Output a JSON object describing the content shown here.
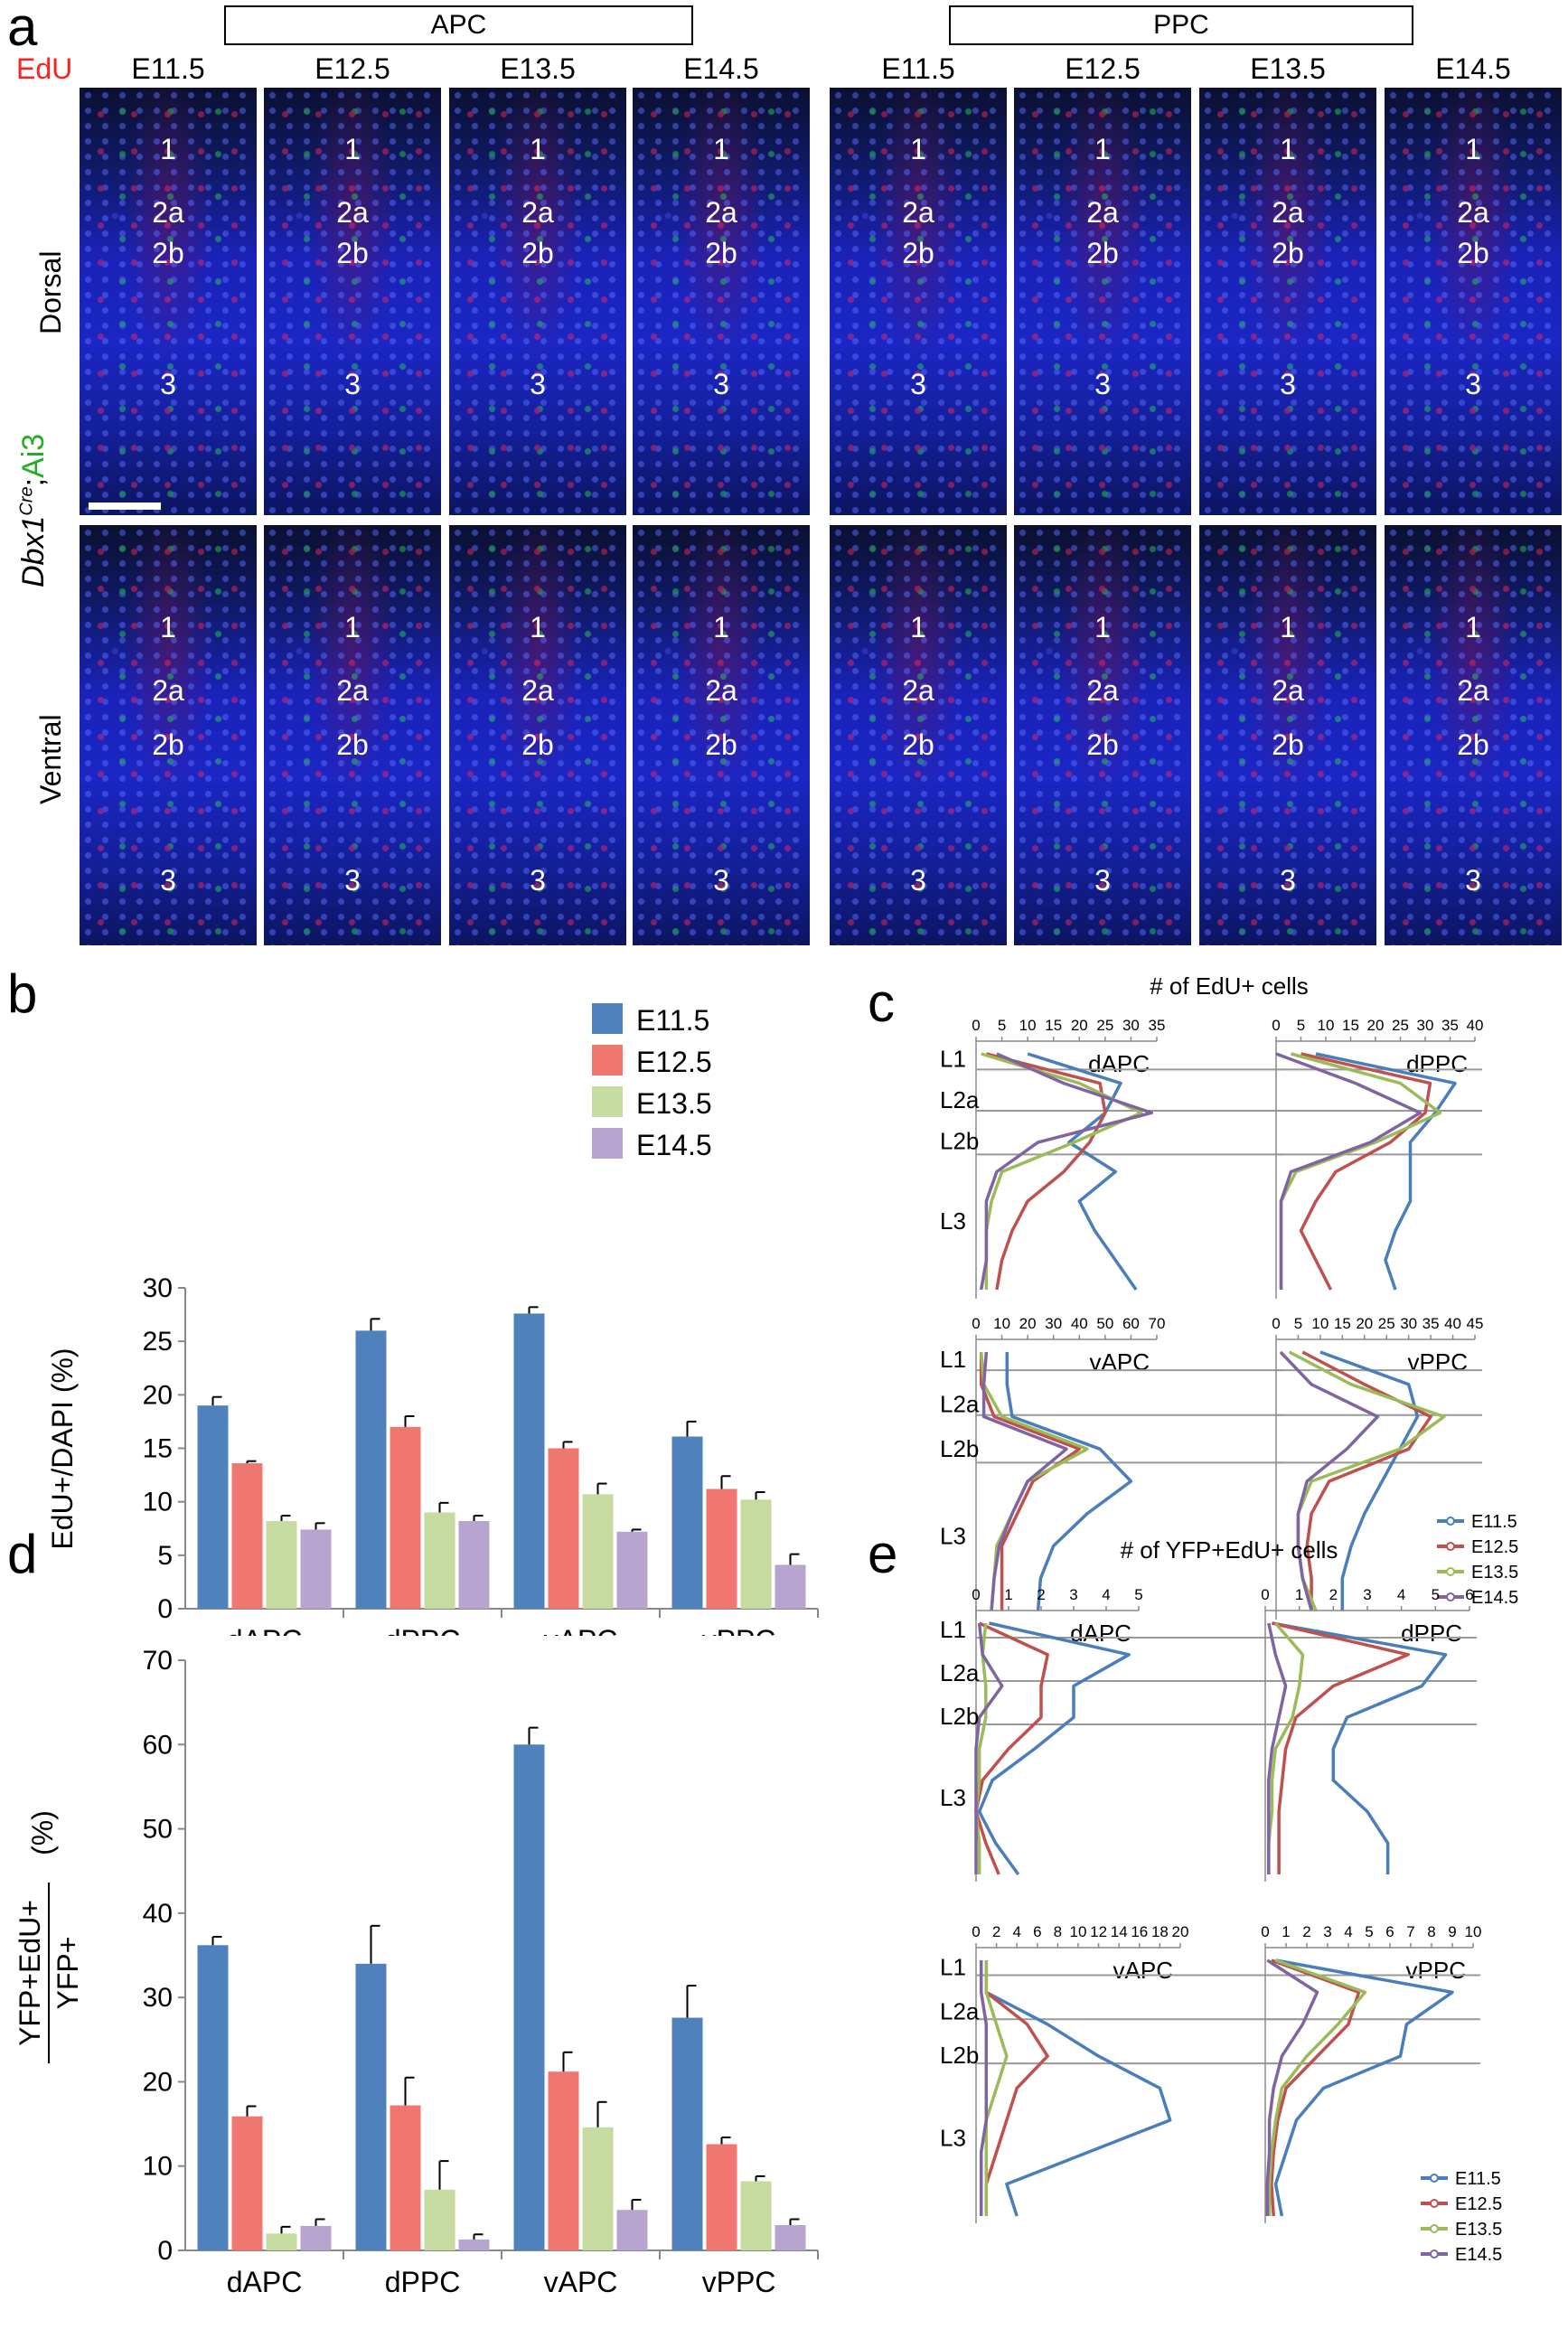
{
  "panel_letters": {
    "a": "a",
    "b": "b",
    "c": "c",
    "d": "d",
    "e": "e"
  },
  "panel_a": {
    "header_apc": "APC",
    "header_ppc": "PPC",
    "edu_label": "EdU",
    "edu_color": "#ff2020",
    "ages": [
      "E11.5",
      "E12.5",
      "E13.5",
      "E14.5"
    ],
    "row_labels": {
      "dorsal": "Dorsal",
      "ventral": "Ventral"
    },
    "genotype_label": {
      "gene": "Dbx1",
      "sup": "Cre",
      "sep": ";",
      "reporter": "Ai3",
      "reporter_color": "#22b022"
    },
    "layer_labels": {
      "l1": "1",
      "l2a": "2a",
      "l2b": "2b",
      "l3": "3"
    }
  },
  "colors": {
    "E11.5": "#4f81bd",
    "E12.5": "#f0776f",
    "E13.5": "#c6dba0",
    "E14.5": "#b7a5cf",
    "line_E11.5": "#4a7ebb",
    "line_E12.5": "#c0504d",
    "line_E13.5": "#9bbb59",
    "line_E14.5": "#8064a2"
  },
  "chart_data": [
    {
      "id": "b",
      "type": "bar",
      "categories": [
        "dAPC",
        "dPPC",
        "vAPC",
        "vPPC"
      ],
      "ylabel": "EdU+/DAPI (%)",
      "ylim": [
        0,
        30
      ],
      "yticks": [
        0,
        5,
        10,
        15,
        20,
        25,
        30
      ],
      "legend_position": "top-right",
      "series": [
        {
          "name": "E11.5",
          "values": [
            19.0,
            26.0,
            27.6,
            16.1
          ],
          "errors": [
            0.8,
            1.1,
            0.6,
            1.4
          ]
        },
        {
          "name": "E12.5",
          "values": [
            13.6,
            17.0,
            15.0,
            11.2
          ],
          "errors": [
            0.2,
            1.0,
            0.6,
            1.2
          ]
        },
        {
          "name": "E13.5",
          "values": [
            8.2,
            9.0,
            10.7,
            10.2
          ],
          "errors": [
            0.5,
            0.9,
            1.0,
            0.7
          ]
        },
        {
          "name": "E14.5",
          "values": [
            7.4,
            8.2,
            7.2,
            4.1
          ],
          "errors": [
            0.6,
            0.5,
            0.2,
            1.0
          ]
        }
      ]
    },
    {
      "id": "d",
      "type": "bar",
      "categories": [
        "dAPC",
        "dPPC",
        "vAPC",
        "vPPC"
      ],
      "ylabel_num": "YFP+EdU+",
      "ylabel_den": "YFP+",
      "ylabel_unit": "(%)",
      "ylim": [
        0,
        70
      ],
      "yticks": [
        0,
        10,
        20,
        30,
        40,
        50,
        60,
        70
      ],
      "series": [
        {
          "name": "E11.5",
          "values": [
            36.2,
            34.0,
            60.0,
            27.6
          ],
          "errors": [
            1.0,
            4.5,
            2.0,
            3.8
          ]
        },
        {
          "name": "E12.5",
          "values": [
            15.9,
            17.2,
            21.2,
            12.6
          ],
          "errors": [
            1.2,
            3.3,
            2.3,
            0.8
          ]
        },
        {
          "name": "E13.5",
          "values": [
            2.0,
            7.2,
            14.6,
            8.2
          ],
          "errors": [
            0.8,
            3.4,
            3.0,
            0.6
          ]
        },
        {
          "name": "E14.5",
          "values": [
            2.9,
            1.3,
            4.8,
            3.0
          ],
          "errors": [
            0.8,
            0.6,
            1.2,
            0.7
          ]
        }
      ]
    },
    {
      "id": "c",
      "type": "line",
      "title": "# of EdU+ cells",
      "layer_labels": [
        "L1",
        "L2a",
        "L2b",
        "L3"
      ],
      "legend_position": "bottom-right",
      "subplots": [
        {
          "name": "dAPC",
          "xticks": [
            0,
            5,
            10,
            15,
            20,
            25,
            30,
            35
          ],
          "xlim": [
            0,
            35
          ],
          "series": [
            {
              "name": "E11.5",
              "values": [
                10,
                28,
                25,
                18,
                27,
                20,
                23,
                27,
                31
              ]
            },
            {
              "name": "E12.5",
              "values": [
                2,
                24,
                25,
                22,
                17,
                10,
                7,
                5,
                4
              ]
            },
            {
              "name": "E13.5",
              "values": [
                1,
                20,
                32,
                19,
                5,
                3,
                2,
                2,
                2
              ]
            },
            {
              "name": "E14.5",
              "values": [
                4,
                17,
                34,
                12,
                4,
                2,
                2,
                2,
                1
              ]
            }
          ]
        },
        {
          "name": "dPPC",
          "xticks": [
            0,
            5,
            10,
            15,
            20,
            25,
            30,
            35,
            40
          ],
          "xlim": [
            0,
            40
          ],
          "series": [
            {
              "name": "E11.5",
              "values": [
                8,
                36,
                32,
                27,
                27,
                27,
                24,
                22,
                24
              ]
            },
            {
              "name": "E12.5",
              "values": [
                5,
                31,
                30,
                23,
                12,
                8,
                5,
                8,
                11
              ]
            },
            {
              "name": "E13.5",
              "values": [
                3,
                25,
                33,
                20,
                4,
                1,
                1,
                1,
                1
              ]
            },
            {
              "name": "E14.5",
              "values": [
                0,
                16,
                29,
                19,
                3,
                1,
                1,
                1,
                1
              ]
            }
          ]
        },
        {
          "name": "vAPC",
          "xticks": [
            0,
            10,
            20,
            30,
            40,
            50,
            60,
            70
          ],
          "xlim": [
            0,
            70
          ],
          "series": [
            {
              "name": "E11.5",
              "values": [
                12,
                12,
                14,
                48,
                60,
                43,
                30,
                25,
                24
              ]
            },
            {
              "name": "E12.5",
              "values": [
                2,
                2,
                7,
                40,
                22,
                16,
                10,
                10,
                10
              ]
            },
            {
              "name": "E13.5",
              "values": [
                2,
                3,
                10,
                43,
                20,
                14,
                8,
                7,
                6
              ]
            },
            {
              "name": "E14.5",
              "values": [
                4,
                3,
                3,
                35,
                20,
                14,
                9,
                7,
                6
              ]
            }
          ]
        },
        {
          "name": "vPPC",
          "xticks": [
            0,
            5,
            10,
            15,
            20,
            25,
            30,
            35,
            40,
            45
          ],
          "xlim": [
            0,
            45
          ],
          "series": [
            {
              "name": "E11.5",
              "values": [
                10,
                30,
                32,
                28,
                24,
                20,
                17,
                15,
                15
              ]
            },
            {
              "name": "E12.5",
              "values": [
                6,
                20,
                35,
                30,
                12,
                8,
                7,
                8,
                8
              ]
            },
            {
              "name": "E13.5",
              "values": [
                3,
                17,
                38,
                28,
                8,
                5,
                5,
                6,
                9
              ]
            },
            {
              "name": "E14.5",
              "values": [
                1,
                8,
                23,
                16,
                7,
                5,
                5,
                6,
                8
              ]
            }
          ]
        }
      ]
    },
    {
      "id": "e",
      "type": "line",
      "title": "# of YFP+EdU+ cells",
      "layer_labels": [
        "L1",
        "L2a",
        "L2b",
        "L3"
      ],
      "legend_position": "bottom-right",
      "subplots": [
        {
          "name": "dAPC",
          "xticks": [
            0,
            1,
            2,
            3,
            4,
            5
          ],
          "xlim": [
            0,
            5
          ],
          "series": [
            {
              "name": "E11.5",
              "values": [
                0.4,
                4.7,
                3.0,
                3.0,
                1.8,
                0.5,
                0.1,
                0.6,
                1.3
              ]
            },
            {
              "name": "E12.5",
              "values": [
                0.1,
                2.2,
                2.0,
                2.0,
                1.0,
                0.2,
                0.0,
                0.3,
                0.7
              ]
            },
            {
              "name": "E13.5",
              "values": [
                0.3,
                0.2,
                0.3,
                0.3,
                0.1,
                0.1,
                0.0,
                0.1,
                0.1
              ]
            },
            {
              "name": "E14.5",
              "values": [
                0.1,
                0.2,
                0.8,
                0.1,
                0.0,
                0.0,
                0.0,
                0.0,
                0.0
              ]
            }
          ]
        },
        {
          "name": "dPPC",
          "xticks": [
            0,
            1,
            2,
            3,
            4,
            5,
            6
          ],
          "xlim": [
            0,
            6
          ],
          "series": [
            {
              "name": "E11.5",
              "values": [
                0.2,
                5.3,
                4.6,
                2.4,
                2.0,
                2.0,
                3.0,
                3.6,
                3.6
              ]
            },
            {
              "name": "E12.5",
              "values": [
                0.2,
                4.2,
                2.0,
                0.9,
                0.6,
                0.5,
                0.4,
                0.4,
                0.4
              ]
            },
            {
              "name": "E13.5",
              "values": [
                0.3,
                1.1,
                1.0,
                0.8,
                0.3,
                0.2,
                0.2,
                0.1,
                0.1
              ]
            },
            {
              "name": "E14.5",
              "values": [
                0.1,
                0.3,
                0.6,
                0.4,
                0.2,
                0.1,
                0.1,
                0.1,
                0.1
              ]
            }
          ]
        },
        {
          "name": "vAPC",
          "xticks": [
            0,
            2,
            4,
            6,
            8,
            10,
            12,
            14,
            16,
            18,
            20
          ],
          "xlim": [
            0,
            20
          ],
          "series": [
            {
              "name": "E11.5",
              "values": [
                1,
                1,
                7,
                12,
                18,
                19,
                11,
                3,
                4
              ]
            },
            {
              "name": "E12.5",
              "values": [
                1,
                1,
                5,
                7,
                4,
                3,
                2,
                1,
                1
              ]
            },
            {
              "name": "E13.5",
              "values": [
                1,
                1,
                2,
                3,
                2,
                1,
                1,
                1,
                1
              ]
            },
            {
              "name": "E14.5",
              "values": [
                0.5,
                0.5,
                1,
                1,
                1,
                1,
                0.5,
                0.5,
                0.5
              ]
            }
          ]
        },
        {
          "name": "vPPC",
          "xticks": [
            0,
            1,
            2,
            3,
            4,
            5,
            6,
            7,
            8,
            9,
            10
          ],
          "xlim": [
            0,
            10
          ],
          "series": [
            {
              "name": "E11.5",
              "values": [
                0.5,
                9,
                6.8,
                6.5,
                2.8,
                1.5,
                1.0,
                0.5,
                0.8
              ]
            },
            {
              "name": "E12.5",
              "values": [
                0.3,
                4.5,
                4.0,
                2.5,
                1.0,
                0.6,
                0.4,
                0.3,
                0.4
              ]
            },
            {
              "name": "E13.5",
              "values": [
                0.5,
                4.8,
                3.5,
                2.0,
                0.8,
                0.5,
                0.3,
                0.2,
                0.2
              ]
            },
            {
              "name": "E14.5",
              "values": [
                0.1,
                2.5,
                1.8,
                0.8,
                0.4,
                0.2,
                0.2,
                0.1,
                0.1
              ]
            }
          ]
        }
      ]
    }
  ]
}
